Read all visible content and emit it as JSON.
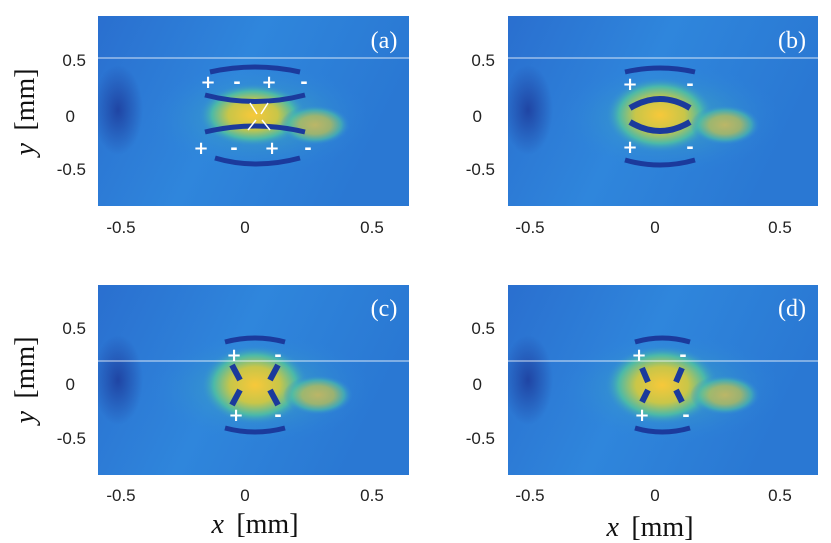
{
  "figure": {
    "x_axis_label": "x",
    "x_axis_unit": "[mm]",
    "y_axis_label": "y",
    "y_axis_unit": "[mm]",
    "x_ticks": [
      "-0.5",
      "0",
      "0.5"
    ],
    "y_ticks": [
      "0.5",
      "0",
      "-0.5"
    ],
    "panels": [
      {
        "label": "(a)",
        "marks": [
          "+",
          "-",
          "+",
          "-",
          "+",
          "-",
          "+",
          "-"
        ]
      },
      {
        "label": "(b)",
        "marks": [
          "+",
          "-",
          "+",
          "-"
        ]
      },
      {
        "label": "(c)",
        "marks": [
          "+",
          "-",
          "+",
          "-"
        ]
      },
      {
        "label": "(d)",
        "marks": [
          "+",
          "-",
          "+",
          "-"
        ]
      }
    ]
  },
  "colors": {
    "background": "#2c7fd6",
    "bright": "#f3c23a",
    "dark": "#1b3a9c",
    "mid": "#3fb4b0"
  }
}
